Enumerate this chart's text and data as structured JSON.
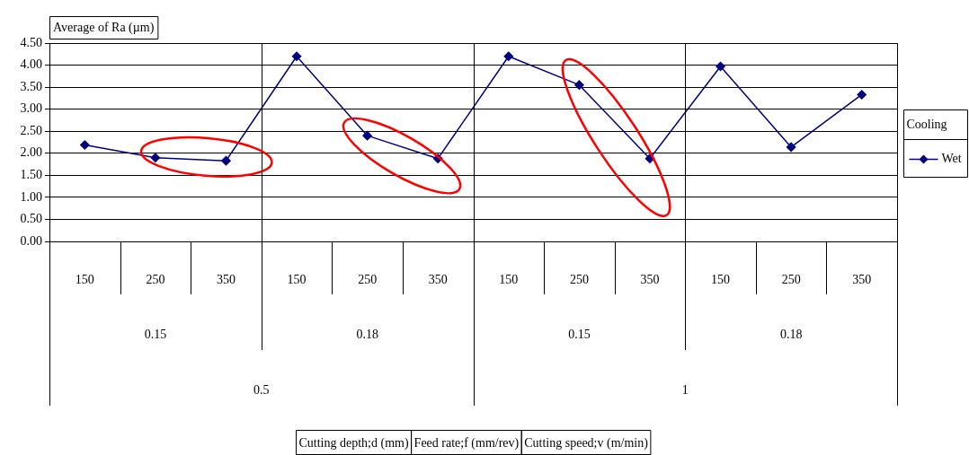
{
  "chart_data": {
    "type": "line",
    "ylabel": "Average of Ra (µm)",
    "legend_title": "Cooling",
    "categories": [
      "150",
      "250",
      "350",
      "150",
      "250",
      "350",
      "150",
      "250",
      "350",
      "150",
      "250",
      "350"
    ],
    "series": [
      {
        "name": "Wet",
        "color": "#000080",
        "values": [
          2.19,
          1.9,
          1.83,
          4.2,
          2.4,
          1.88,
          4.2,
          3.55,
          1.88,
          3.97,
          2.14,
          3.33
        ]
      }
    ],
    "ylim": [
      0,
      4.5
    ],
    "yticks": [
      {
        "value": 0,
        "label": "0.00"
      },
      {
        "value": 0.5,
        "label": "0.50"
      },
      {
        "value": 1,
        "label": "1.00"
      },
      {
        "value": 1.5,
        "label": "1.50"
      },
      {
        "value": 2,
        "label": "2.00"
      },
      {
        "value": 2.5,
        "label": "2.50"
      },
      {
        "value": 3,
        "label": "3.00"
      },
      {
        "value": 3.5,
        "label": "3.50"
      },
      {
        "value": 4,
        "label": "4.00"
      },
      {
        "value": 4.5,
        "label": "4.50"
      }
    ],
    "annotations": [
      "0.15",
      "0.18",
      "0.15",
      "0.18",
      "0.5",
      "1",
      "Cutting depth;d (mm)",
      "Feed rate;f (mm/rev)",
      "Cutting speed;v (m/min)"
    ],
    "grid": "y",
    "legend": "right",
    "marker": "diamond",
    "line_style": "solid"
  }
}
